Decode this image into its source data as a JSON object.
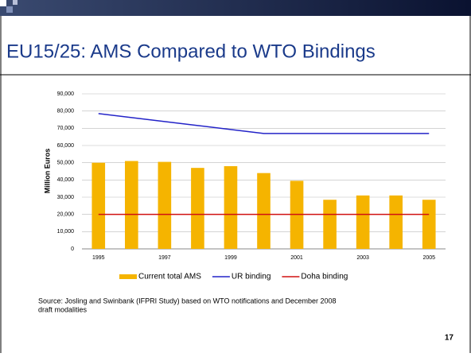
{
  "slide_title": "EU15/25: AMS Compared to WTO Bindings",
  "page_number": "17",
  "source": [
    "Source: Josling and Swinbank (IFPRI Study) based on WTO notifications and December 2008",
    "draft modalities"
  ],
  "chart_data": {
    "type": "bar",
    "ylabel": "Million Euros",
    "categories": [
      "1995",
      null,
      "1997",
      null,
      "1999",
      null,
      "2001",
      null,
      "2003",
      null,
      "2005"
    ],
    "series": [
      {
        "name": "Current total AMS",
        "type": "bar",
        "color": "#f5b400",
        "values": [
          50000,
          51000,
          50500,
          47000,
          48000,
          44000,
          39500,
          28500,
          31000,
          31000,
          28500
        ]
      },
      {
        "name": "UR binding",
        "type": "line",
        "color": "#2323c8",
        "values": [
          78500,
          76200,
          73900,
          71600,
          69300,
          67000,
          67000,
          67000,
          67000,
          67000,
          67000
        ]
      },
      {
        "name": "Doha binding",
        "type": "line",
        "color": "#d01010",
        "values": [
          20000,
          20000,
          20000,
          20000,
          20000,
          20000,
          20000,
          20000,
          20000,
          20000,
          20000
        ]
      }
    ],
    "ylim": [
      0,
      90000
    ],
    "yticks": [
      0,
      {
        "value": 10000,
        "label": "10,000"
      },
      {
        "value": 20000,
        "label": "20,000"
      },
      {
        "value": 30000,
        "label": "30,000"
      },
      {
        "value": 40000,
        "label": "40,000"
      },
      {
        "value": 50000,
        "label": "50,000"
      },
      {
        "value": 60000,
        "label": "60,000"
      },
      {
        "value": 70000,
        "label": "70,000"
      },
      {
        "value": 80000,
        "label": "80,000"
      },
      {
        "value": 90000,
        "label": "90,000"
      }
    ],
    "grid": true
  }
}
